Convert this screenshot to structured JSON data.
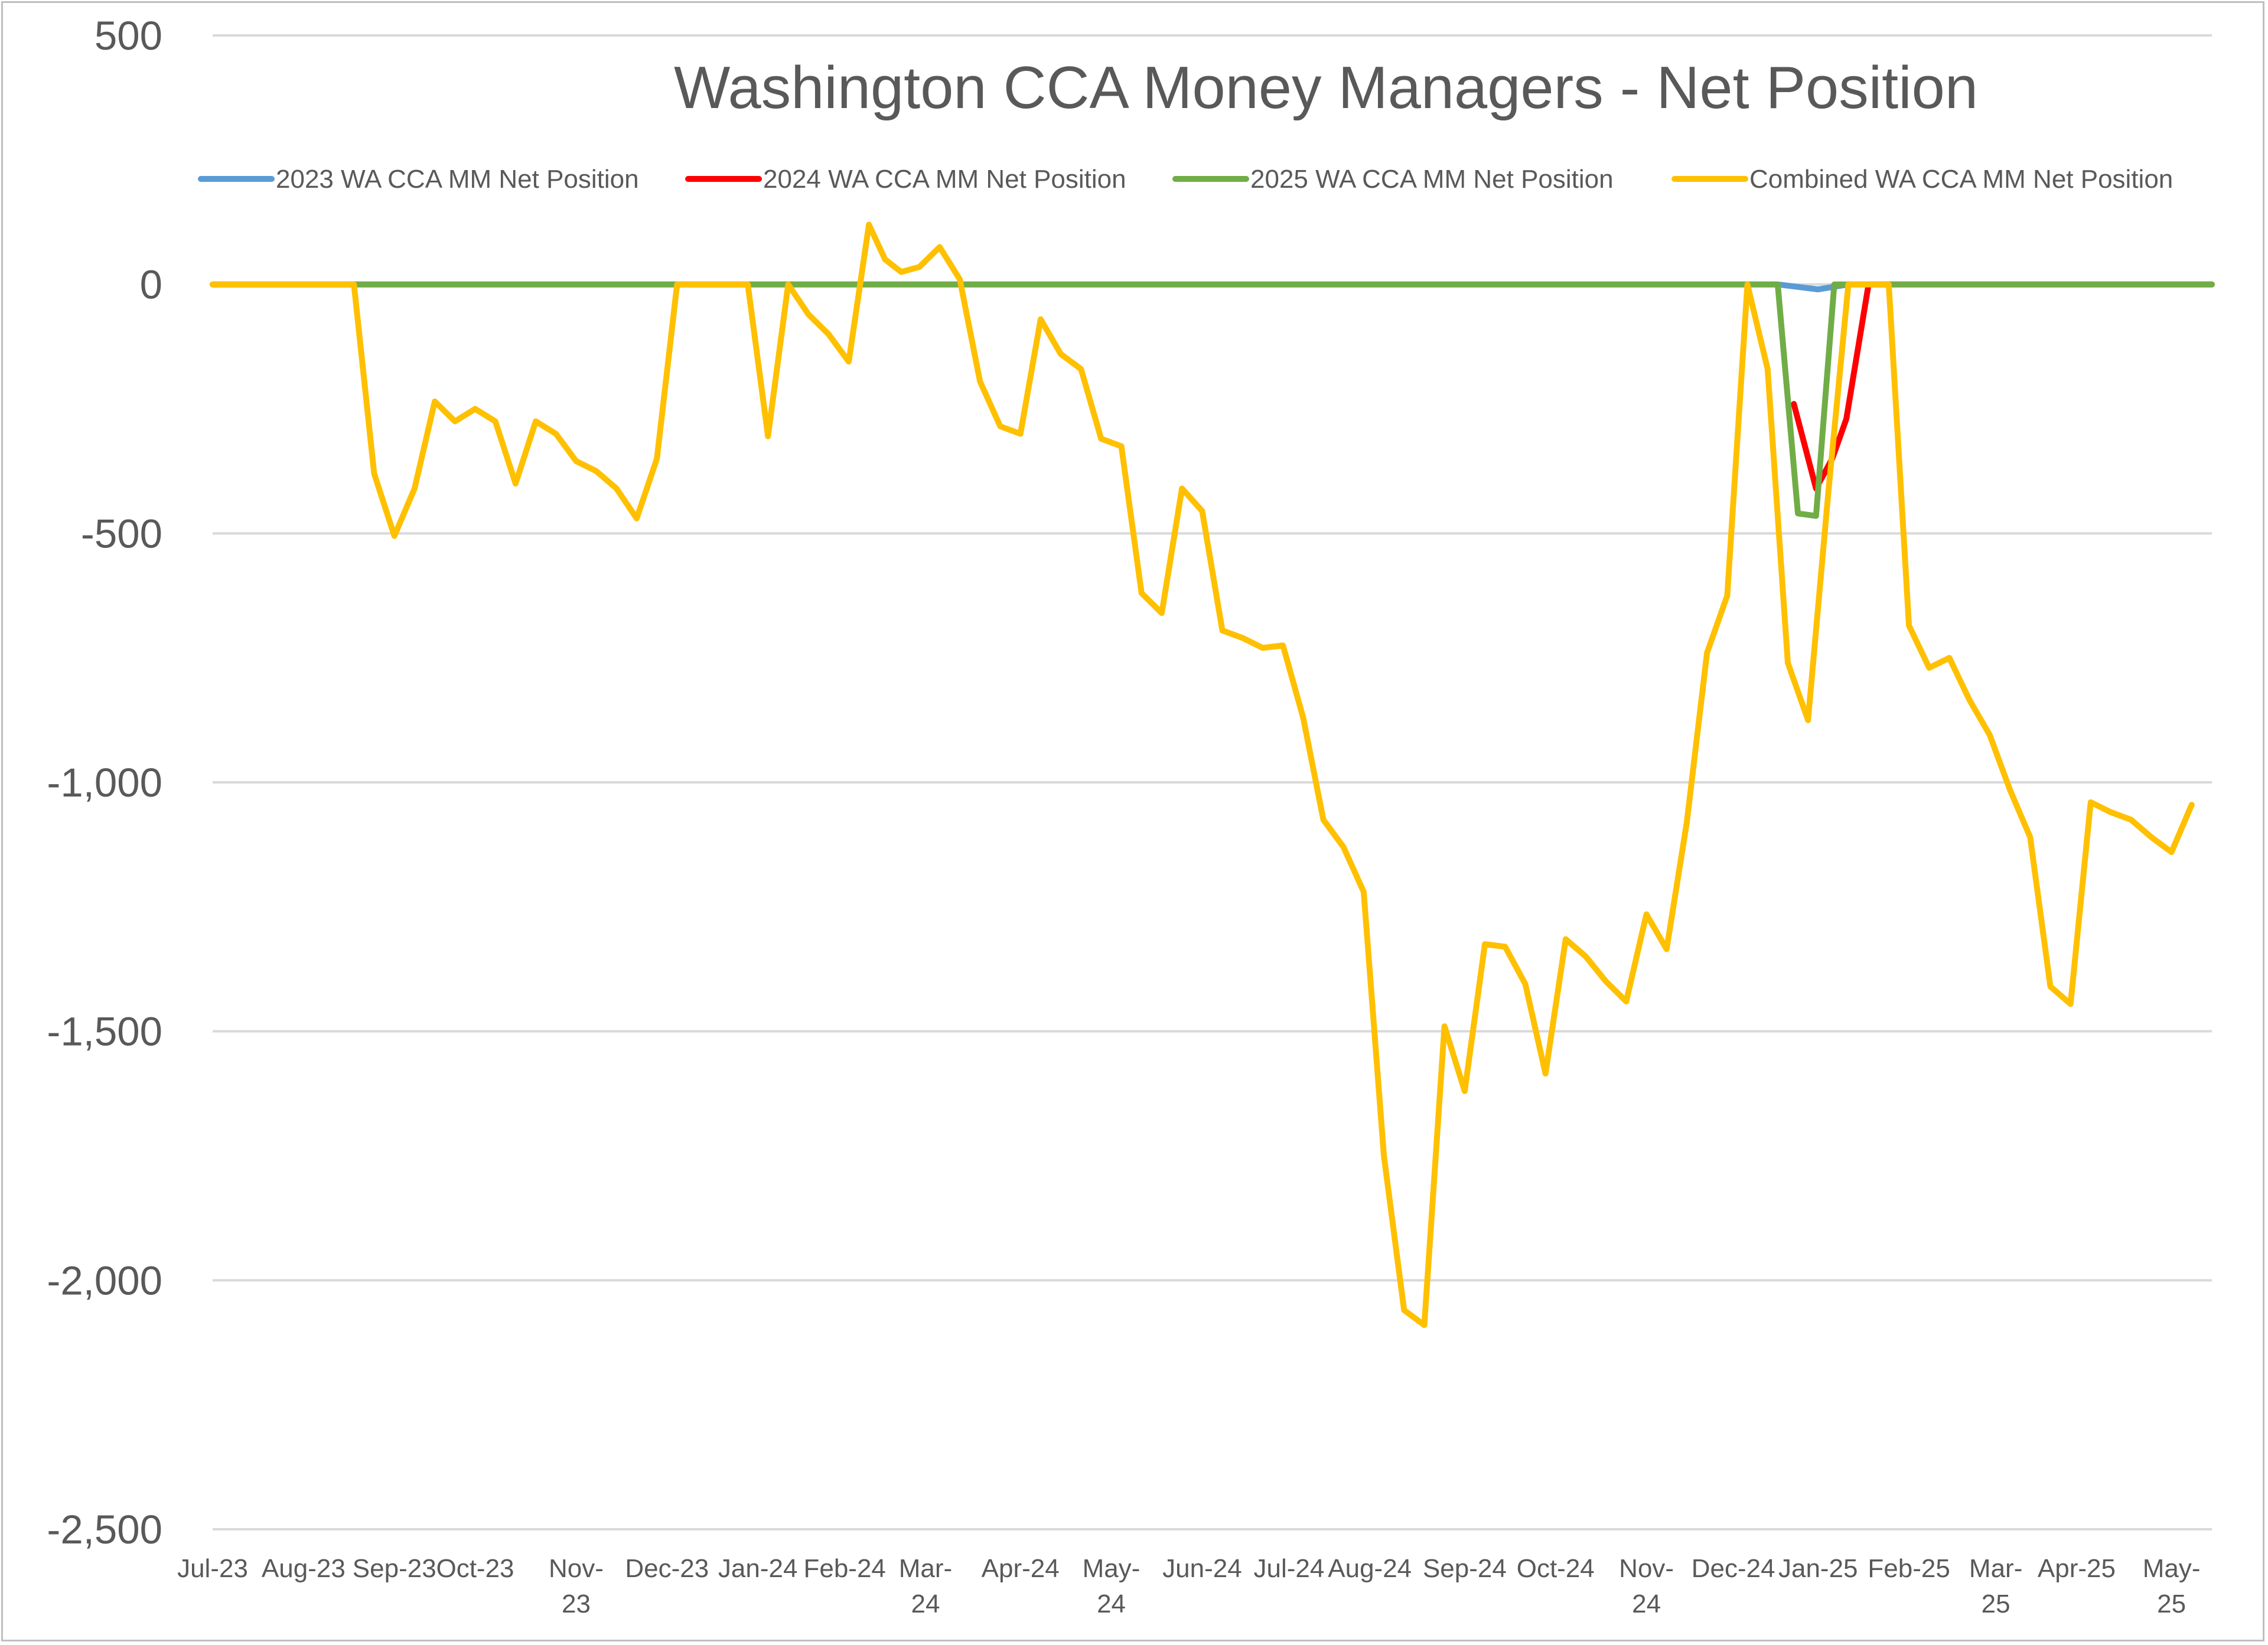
{
  "chart_data": {
    "type": "line",
    "title": "Washington CCA Money Managers - Net Position",
    "ylim": [
      -2500,
      500
    ],
    "yticks": [
      500,
      0,
      -500,
      -1000,
      -1500,
      -2000,
      -2500
    ],
    "ytick_labels": [
      "500",
      "0",
      "-500",
      "-1,000",
      "-1,500",
      "-2,000",
      "-2,500"
    ],
    "x_range_weeks": [
      0,
      99
    ],
    "xtick_positions_weeks": [
      0,
      4.5,
      9,
      13,
      18,
      22.5,
      27,
      31.3,
      35.3,
      40,
      44.5,
      49,
      53.3,
      57.3,
      62,
      66.5,
      71,
      75.3,
      79.5,
      84,
      88.3,
      92.3,
      97
    ],
    "xtick_labels": [
      [
        "Jul-23"
      ],
      [
        "Aug-23"
      ],
      [
        "Sep-23"
      ],
      [
        "Oct-23"
      ],
      [
        "Nov-",
        "23"
      ],
      [
        "Dec-23"
      ],
      [
        "Jan-24"
      ],
      [
        "Feb-24"
      ],
      [
        "Mar-",
        "24"
      ],
      [
        "Apr-24"
      ],
      [
        "May-",
        "24"
      ],
      [
        "Jun-24"
      ],
      [
        "Jul-24"
      ],
      [
        "Aug-24"
      ],
      [
        "Sep-24"
      ],
      [
        "Oct-24"
      ],
      [
        "Nov-",
        "24"
      ],
      [
        "Dec-24"
      ],
      [
        "Jan-25"
      ],
      [
        "Feb-25"
      ],
      [
        "Mar-",
        "25"
      ],
      [
        "Apr-25"
      ],
      [
        "May-",
        "25"
      ]
    ],
    "grid": true,
    "legend_position": "top",
    "series": [
      {
        "name": "2023 WA CCA MM Net Position",
        "color": "#5b9bd5",
        "points": [
          [
            0,
            0
          ],
          [
            77.5,
            0
          ],
          [
            79.5,
            -10
          ],
          [
            81,
            0
          ]
        ]
      },
      {
        "name": "2024 WA CCA MM Net Position",
        "color": "#ff0000",
        "points": [
          [
            78.3,
            -240
          ],
          [
            79.4,
            -410
          ],
          [
            80.2,
            -350
          ],
          [
            80.9,
            -270
          ],
          [
            82,
            0
          ],
          [
            99,
            0
          ]
        ]
      },
      {
        "name": "2025 WA CCA MM Net Position",
        "color": "#70ad47",
        "points": [
          [
            0,
            0
          ],
          [
            77.5,
            0
          ],
          [
            78.5,
            -460
          ],
          [
            79.4,
            -465
          ],
          [
            80.3,
            0
          ],
          [
            99,
            0
          ]
        ]
      },
      {
        "name": "Combined WA CCA MM Net Position",
        "color": "#ffc000",
        "points": [
          [
            0,
            0
          ],
          [
            7,
            0
          ],
          [
            8,
            -380
          ],
          [
            9,
            -505
          ],
          [
            10,
            -410
          ],
          [
            11,
            -235
          ],
          [
            12,
            -275
          ],
          [
            13,
            -250
          ],
          [
            14,
            -275
          ],
          [
            15,
            -400
          ],
          [
            16,
            -275
          ],
          [
            17,
            -300
          ],
          [
            18,
            -355
          ],
          [
            19,
            -375
          ],
          [
            20,
            -410
          ],
          [
            21,
            -470
          ],
          [
            22,
            -350
          ],
          [
            23,
            0
          ],
          [
            26.5,
            0
          ],
          [
            27.5,
            -305
          ],
          [
            28.5,
            0
          ],
          [
            29.5,
            -60
          ],
          [
            30.5,
            -100
          ],
          [
            31.5,
            -155
          ],
          [
            32.5,
            120
          ],
          [
            33.3,
            50
          ],
          [
            34.1,
            25
          ],
          [
            35,
            35
          ],
          [
            36,
            75
          ],
          [
            37,
            10
          ],
          [
            38,
            -195
          ],
          [
            39,
            -285
          ],
          [
            40,
            -300
          ],
          [
            41,
            -70
          ],
          [
            42,
            -140
          ],
          [
            43,
            -170
          ],
          [
            44,
            -310
          ],
          [
            45,
            -325
          ],
          [
            46,
            -620
          ],
          [
            47,
            -660
          ],
          [
            48,
            -410
          ],
          [
            49,
            -455
          ],
          [
            50,
            -695
          ],
          [
            51,
            -710
          ],
          [
            52,
            -730
          ],
          [
            53,
            -725
          ],
          [
            54,
            -870
          ],
          [
            55,
            -1075
          ],
          [
            56,
            -1130
          ],
          [
            57,
            -1220
          ],
          [
            58,
            -1750
          ],
          [
            59,
            -2060
          ],
          [
            60,
            -2090
          ],
          [
            61,
            -1490
          ],
          [
            62,
            -1620
          ],
          [
            63,
            -1325
          ],
          [
            64,
            -1330
          ],
          [
            65,
            -1405
          ],
          [
            66,
            -1585
          ],
          [
            67,
            -1315
          ],
          [
            68,
            -1350
          ],
          [
            69,
            -1400
          ],
          [
            70,
            -1440
          ],
          [
            71,
            -1265
          ],
          [
            72,
            -1335
          ],
          [
            73,
            -1080
          ],
          [
            74,
            -740
          ],
          [
            75,
            -625
          ],
          [
            76,
            0
          ],
          [
            77,
            -170
          ],
          [
            78,
            -760
          ],
          [
            79,
            -875
          ],
          [
            80,
            -420
          ],
          [
            81,
            0
          ],
          [
            83,
            0
          ],
          [
            84,
            -685
          ],
          [
            85,
            -770
          ],
          [
            86,
            -750
          ],
          [
            87,
            -835
          ],
          [
            88,
            -905
          ],
          [
            89,
            -1015
          ],
          [
            90,
            -1110
          ],
          [
            91,
            -1410
          ],
          [
            92,
            -1445
          ],
          [
            93,
            -1040
          ],
          [
            94,
            -1060
          ],
          [
            95,
            -1075
          ],
          [
            96,
            -1110
          ],
          [
            97,
            -1140
          ],
          [
            98,
            -1045
          ]
        ]
      }
    ]
  }
}
